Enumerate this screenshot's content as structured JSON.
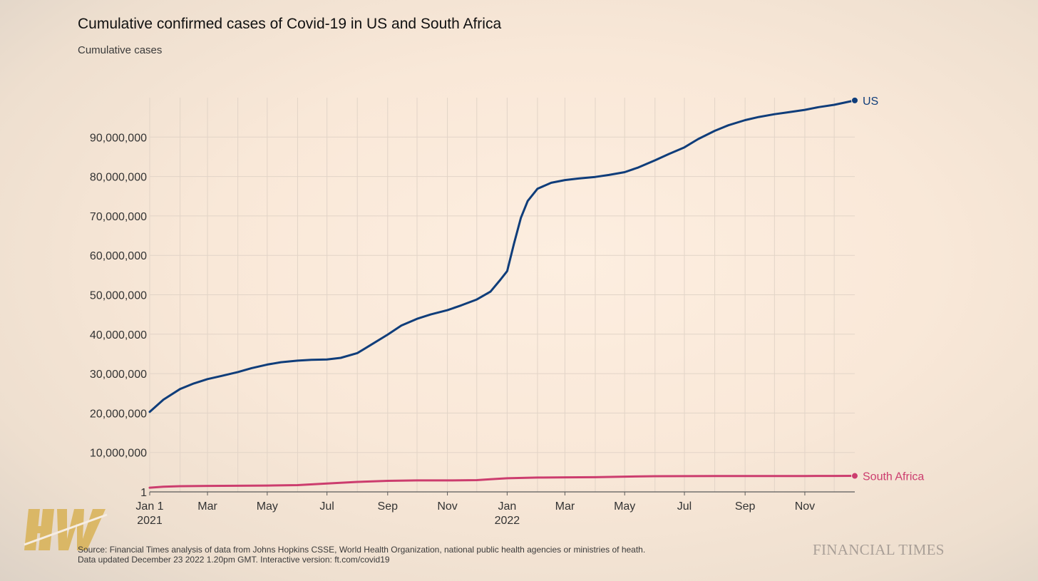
{
  "title": "Cumulative confirmed cases of Covid-19 in US and South Africa",
  "subtitle": "Cumulative cases",
  "footer": {
    "source": "Source: Financial Times analysis of data from Johns Hopkins CSSE, World Health Organization, national public health agencies or ministries of heath.",
    "updated": "Data updated December 23 2022 1.20pm GMT. Interactive version: ft.com/covid19"
  },
  "publisher_logo": "FINANCIAL TIMES",
  "watermark_logo": "HW",
  "colors": {
    "us": "#0f3d7a",
    "south_africa": "#cc3d6e",
    "grid": "#e2d4c7",
    "axis": "#5a5a5a",
    "tick_text": "#333333"
  },
  "chart_data": {
    "type": "line",
    "title": "Cumulative confirmed cases of Covid-19 in US and South Africa",
    "subtitle": "Cumulative cases",
    "xlabel": "",
    "ylabel": "",
    "x_range": [
      "2021-01-01",
      "2022-12-22"
    ],
    "ylim": [
      1,
      100000000
    ],
    "y_ticks": [
      1,
      10000000,
      20000000,
      30000000,
      40000000,
      50000000,
      60000000,
      70000000,
      80000000,
      90000000
    ],
    "y_tick_labels": [
      "1",
      "10,000,000",
      "20,000,000",
      "30,000,000",
      "40,000,000",
      "50,000,000",
      "60,000,000",
      "70,000,000",
      "80,000,000",
      "90,000,000"
    ],
    "x_ticks": [
      {
        "date": "2021-01-01",
        "label": "Jan 1",
        "sublabel": "2021"
      },
      {
        "date": "2021-03-01",
        "label": "Mar",
        "sublabel": ""
      },
      {
        "date": "2021-05-01",
        "label": "May",
        "sublabel": ""
      },
      {
        "date": "2021-07-01",
        "label": "Jul",
        "sublabel": ""
      },
      {
        "date": "2021-09-01",
        "label": "Sep",
        "sublabel": ""
      },
      {
        "date": "2021-11-01",
        "label": "Nov",
        "sublabel": ""
      },
      {
        "date": "2022-01-01",
        "label": "Jan",
        "sublabel": "2022"
      },
      {
        "date": "2022-03-01",
        "label": "Mar",
        "sublabel": ""
      },
      {
        "date": "2022-05-01",
        "label": "May",
        "sublabel": ""
      },
      {
        "date": "2022-07-01",
        "label": "Jul",
        "sublabel": ""
      },
      {
        "date": "2022-09-01",
        "label": "Sep",
        "sublabel": ""
      },
      {
        "date": "2022-11-01",
        "label": "Nov",
        "sublabel": ""
      }
    ],
    "grid": true,
    "legend": "direct labels at line ends (right)",
    "series": [
      {
        "name": "US",
        "color": "#0f3d7a",
        "points": [
          [
            "2021-01-01",
            20300000
          ],
          [
            "2021-01-15",
            23400000
          ],
          [
            "2021-02-01",
            26100000
          ],
          [
            "2021-02-15",
            27500000
          ],
          [
            "2021-03-01",
            28600000
          ],
          [
            "2021-03-15",
            29400000
          ],
          [
            "2021-04-01",
            30400000
          ],
          [
            "2021-04-15",
            31400000
          ],
          [
            "2021-05-01",
            32300000
          ],
          [
            "2021-05-15",
            32900000
          ],
          [
            "2021-06-01",
            33300000
          ],
          [
            "2021-06-15",
            33500000
          ],
          [
            "2021-07-01",
            33600000
          ],
          [
            "2021-07-15",
            34000000
          ],
          [
            "2021-08-01",
            35200000
          ],
          [
            "2021-08-15",
            37300000
          ],
          [
            "2021-09-01",
            39900000
          ],
          [
            "2021-09-15",
            42200000
          ],
          [
            "2021-10-01",
            43900000
          ],
          [
            "2021-10-15",
            45000000
          ],
          [
            "2021-11-01",
            46100000
          ],
          [
            "2021-11-15",
            47300000
          ],
          [
            "2021-12-01",
            48800000
          ],
          [
            "2021-12-15",
            50800000
          ],
          [
            "2021-12-25",
            53800000
          ],
          [
            "2022-01-01",
            56000000
          ],
          [
            "2022-01-08",
            63000000
          ],
          [
            "2022-01-15",
            69500000
          ],
          [
            "2022-01-22",
            73800000
          ],
          [
            "2022-02-01",
            76900000
          ],
          [
            "2022-02-15",
            78400000
          ],
          [
            "2022-03-01",
            79100000
          ],
          [
            "2022-03-15",
            79500000
          ],
          [
            "2022-04-01",
            79900000
          ],
          [
            "2022-04-15",
            80400000
          ],
          [
            "2022-05-01",
            81100000
          ],
          [
            "2022-05-15",
            82300000
          ],
          [
            "2022-06-01",
            84100000
          ],
          [
            "2022-06-15",
            85700000
          ],
          [
            "2022-07-01",
            87400000
          ],
          [
            "2022-07-15",
            89500000
          ],
          [
            "2022-08-01",
            91600000
          ],
          [
            "2022-08-15",
            93000000
          ],
          [
            "2022-09-01",
            94300000
          ],
          [
            "2022-09-15",
            95100000
          ],
          [
            "2022-10-01",
            95800000
          ],
          [
            "2022-10-15",
            96300000
          ],
          [
            "2022-11-01",
            96900000
          ],
          [
            "2022-11-15",
            97600000
          ],
          [
            "2022-12-01",
            98200000
          ],
          [
            "2022-12-22",
            99300000
          ]
        ]
      },
      {
        "name": "South Africa",
        "color": "#cc3d6e",
        "points": [
          [
            "2021-01-01",
            1060000
          ],
          [
            "2021-01-15",
            1300000
          ],
          [
            "2021-02-01",
            1440000
          ],
          [
            "2021-03-01",
            1520000
          ],
          [
            "2021-04-01",
            1550000
          ],
          [
            "2021-05-01",
            1610000
          ],
          [
            "2021-06-01",
            1720000
          ],
          [
            "2021-07-01",
            2140000
          ],
          [
            "2021-08-01",
            2530000
          ],
          [
            "2021-09-01",
            2800000
          ],
          [
            "2021-10-01",
            2910000
          ],
          [
            "2021-11-01",
            2920000
          ],
          [
            "2021-12-01",
            2990000
          ],
          [
            "2021-12-15",
            3200000
          ],
          [
            "2022-01-01",
            3460000
          ],
          [
            "2022-02-01",
            3630000
          ],
          [
            "2022-03-01",
            3690000
          ],
          [
            "2022-04-01",
            3730000
          ],
          [
            "2022-05-01",
            3870000
          ],
          [
            "2022-06-01",
            3980000
          ],
          [
            "2022-07-01",
            4000000
          ],
          [
            "2022-08-01",
            4010000
          ],
          [
            "2022-09-01",
            4020000
          ],
          [
            "2022-10-01",
            4030000
          ],
          [
            "2022-11-01",
            4040000
          ],
          [
            "2022-12-01",
            4050000
          ],
          [
            "2022-12-22",
            4060000
          ]
        ]
      }
    ]
  }
}
